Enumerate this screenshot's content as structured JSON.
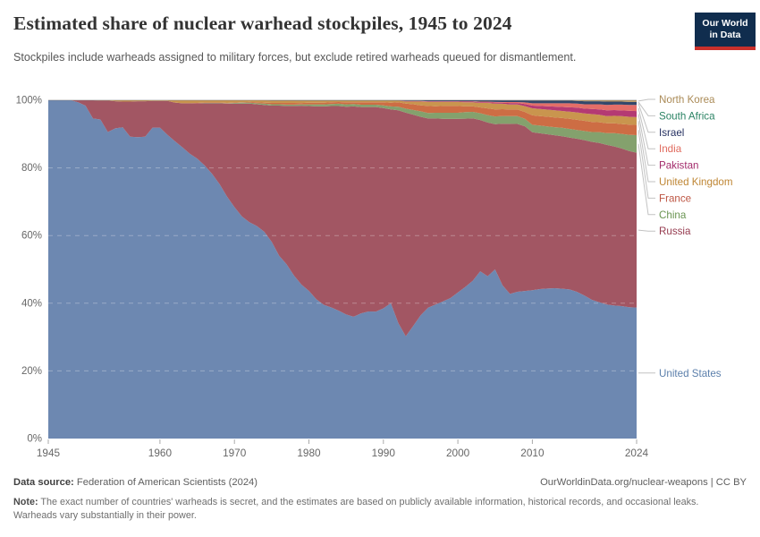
{
  "header": {
    "title": "Estimated share of nuclear warhead stockpiles, 1945 to 2024",
    "subtitle": "Stockpiles include warheads assigned to military forces, but exclude retired warheads queued for dismantlement.",
    "logo": {
      "line1": "Our World",
      "line2": "in Data"
    }
  },
  "footer": {
    "source_label": "Data source:",
    "source_text": " Federation of American Scientists (2024)",
    "link_text": "OurWorldinData.org/nuclear-weapons | CC BY",
    "note_label": "Note:",
    "note_text": " The exact number of countries' warheads is secret, and the estimates are based on publicly available information, historical records, and occasional leaks. Warheads vary substantially in their power."
  },
  "chart_data": {
    "type": "area",
    "stacked": true,
    "normalized_to_100": true,
    "title": "Estimated share of nuclear warhead stockpiles, 1945 to 2024",
    "xlabel": "",
    "ylabel": "",
    "ylim": [
      0,
      100
    ],
    "grid": "dashed",
    "legend_position": "right",
    "x_start": 1945,
    "x_end": 2024,
    "xticks": [
      1945,
      1960,
      1970,
      1980,
      1990,
      2000,
      2010,
      2024
    ],
    "yticks": [
      0,
      20,
      40,
      60,
      80,
      100
    ],
    "ytick_labels": [
      "0%",
      "20%",
      "40%",
      "60%",
      "80%",
      "100%"
    ],
    "legend_order_top_to_bottom": [
      "North Korea",
      "South Africa",
      "Israel",
      "India",
      "Pakistan",
      "United Kingdom",
      "France",
      "China",
      "Russia",
      "United States"
    ],
    "axis_color": "#676767",
    "grid_color_over_areas": "rgba(255,255,255,0.30)",
    "connector_color": "#c2c2c2",
    "top_border_color": "#777777",
    "series": [
      {
        "name": "United States",
        "area_color": "#6d88b1",
        "label_color": "#5b7fab",
        "values": [
          100,
          100,
          100,
          100,
          99.4,
          98.4,
          94.6,
          94.3,
          90.6,
          91.7,
          92,
          89.3,
          89.1,
          89.2,
          91.9,
          91.9,
          89.8,
          87.9,
          86.2,
          84.2,
          82.8,
          80.8,
          78.3,
          75.2,
          71.6,
          68.4,
          65.7,
          64,
          62.9,
          61.2,
          58.2,
          54.1,
          51.7,
          48.3,
          45.6,
          43.7,
          41.3,
          39.6,
          38.8,
          37.8,
          36.7,
          36,
          37.1,
          37.6,
          37.5,
          38.5,
          40.1,
          34.2,
          30.4,
          33.5,
          36.5,
          38.8,
          39.6,
          40.5,
          41.4,
          43.1,
          44.5,
          46.2,
          49.1,
          48,
          50.2,
          45,
          42.3,
          42.8,
          43.2,
          44,
          44.4,
          44.6,
          44.7,
          44.5,
          44.3,
          43.5,
          42.3,
          41,
          40.2,
          39.6,
          39.2,
          39,
          38.8,
          38.7
        ]
      },
      {
        "name": "Russia",
        "area_color": "#a25663",
        "label_color": "#963c50",
        "values": [
          0,
          0,
          0,
          0,
          0.6,
          1.6,
          5.4,
          5.6,
          9.3,
          8,
          7.6,
          10.4,
          10.6,
          10.5,
          7.9,
          7.9,
          10,
          11.4,
          13,
          14.9,
          16.4,
          18.4,
          20.9,
          23.9,
          27.5,
          30.6,
          33.4,
          35.1,
          36,
          37.5,
          40.3,
          44.4,
          46.9,
          50.3,
          53,
          54.7,
          57.2,
          58.8,
          59.6,
          60.5,
          61.5,
          62.2,
          61.1,
          60.5,
          60.4,
          59.2,
          57.4,
          63,
          66.5,
          62.9,
          58.8,
          56.1,
          55,
          53.9,
          52.8,
          51.2,
          49.4,
          47.5,
          44.4,
          45.4,
          43.1,
          47.5,
          49.7,
          48.9,
          48.2,
          46.9,
          46.3,
          45.9,
          45.5,
          45.3,
          45.1,
          45.4,
          46,
          46.7,
          47,
          47.2,
          46.9,
          46.4,
          46.1,
          45.7
        ]
      },
      {
        "name": "China",
        "area_color": "#84a16d",
        "label_color": "#6a9552",
        "values": [
          0,
          0,
          0,
          0,
          0,
          0,
          0,
          0,
          0,
          0,
          0,
          0,
          0,
          0,
          0,
          0,
          0,
          0,
          0,
          0,
          0,
          0.1,
          0.1,
          0.1,
          0.1,
          0.2,
          0.3,
          0.3,
          0.3,
          0.4,
          0.4,
          0.4,
          0.4,
          0.4,
          0.4,
          0.5,
          0.6,
          0.6,
          0.6,
          0.7,
          0.7,
          0.7,
          0.7,
          0.7,
          0.7,
          0.8,
          0.9,
          1.1,
          1.2,
          1.4,
          1.6,
          1.6,
          1.7,
          1.8,
          1.8,
          1.8,
          1.9,
          1.9,
          2,
          2.2,
          2.3,
          2.3,
          2.3,
          2.3,
          2.2,
          2.2,
          2.3,
          2.3,
          2.4,
          2.5,
          2.6,
          2.6,
          2.7,
          2.9,
          3.2,
          3.5,
          3.9,
          4.3,
          4.8,
          5.2
        ]
      },
      {
        "name": "France",
        "area_color": "#cd6d44",
        "label_color": "#bd5543",
        "values": [
          0,
          0,
          0,
          0,
          0,
          0,
          0,
          0,
          0,
          0,
          0,
          0,
          0,
          0,
          0,
          0,
          0,
          0,
          0,
          0,
          0.1,
          0.1,
          0.1,
          0.1,
          0.1,
          0.1,
          0.1,
          0.2,
          0.3,
          0.3,
          0.4,
          0.4,
          0.5,
          0.5,
          0.4,
          0.5,
          0.5,
          0.5,
          0.5,
          0.5,
          0.6,
          0.5,
          0.7,
          0.7,
          0.7,
          0.9,
          1.1,
          1.3,
          1.5,
          1.7,
          1.8,
          2.1,
          1.9,
          2,
          2,
          2,
          1.7,
          1.6,
          1.7,
          2,
          2.1,
          2,
          1.9,
          1.9,
          2,
          2.8,
          2.8,
          2.9,
          2.9,
          2.9,
          3,
          3,
          3,
          3,
          2.9,
          2.9,
          2.9,
          2.9,
          3,
          3
        ]
      },
      {
        "name": "United Kingdom",
        "area_color": "#c9954e",
        "label_color": "#bf8634",
        "values": [
          0,
          0,
          0,
          0,
          0,
          0,
          0,
          0.1,
          0.1,
          0.3,
          0.4,
          0.4,
          0.3,
          0.3,
          0.2,
          0.2,
          0.2,
          0.7,
          0.9,
          0.9,
          0.8,
          0.7,
          0.7,
          0.7,
          0.8,
          0.7,
          0.6,
          0.5,
          0.6,
          0.7,
          0.7,
          0.7,
          0.7,
          0.7,
          0.7,
          0.6,
          0.6,
          0.6,
          0.5,
          0.4,
          0.5,
          0.5,
          0.5,
          0.5,
          0.5,
          0.5,
          0.6,
          0.5,
          0.6,
          0.8,
          1.1,
          1.2,
          1.3,
          1.2,
          1.2,
          1.2,
          1.2,
          1.2,
          1.3,
          1.6,
          1.7,
          1.6,
          1.5,
          1.5,
          1.7,
          2.1,
          2.1,
          2.1,
          2.1,
          2.1,
          2.1,
          2.2,
          2.2,
          2.3,
          2.2,
          2.1,
          2.2,
          2.3,
          2.3,
          2.3
        ]
      },
      {
        "name": "Pakistan",
        "area_color": "#b43a73",
        "label_color": "#a32b6b",
        "values": [
          0,
          0,
          0,
          0,
          0,
          0,
          0,
          0,
          0,
          0,
          0,
          0,
          0,
          0,
          0,
          0,
          0,
          0,
          0,
          0,
          0,
          0,
          0,
          0,
          0,
          0,
          0,
          0,
          0,
          0,
          0,
          0,
          0,
          0,
          0,
          0,
          0,
          0,
          0,
          0,
          0,
          0,
          0,
          0,
          0,
          0,
          0,
          0,
          0.1,
          0.1,
          0.1,
          0.1,
          0.1,
          0.1,
          0.1,
          0.1,
          0.2,
          0.2,
          0.2,
          0.2,
          0.3,
          0.3,
          0.4,
          0.4,
          0.6,
          0.8,
          0.9,
          1,
          1.1,
          1.2,
          1.3,
          1.4,
          1.4,
          1.5,
          1.6,
          1.7,
          1.7,
          1.7,
          1.8,
          1.8
        ]
      },
      {
        "name": "India",
        "area_color": "#e46e68",
        "label_color": "#e0695c",
        "values": [
          0,
          0,
          0,
          0,
          0,
          0,
          0,
          0,
          0,
          0,
          0,
          0,
          0,
          0,
          0,
          0,
          0,
          0,
          0,
          0,
          0,
          0,
          0,
          0,
          0,
          0,
          0,
          0,
          0,
          0,
          0,
          0,
          0,
          0,
          0,
          0,
          0,
          0,
          0,
          0,
          0,
          0,
          0,
          0,
          0,
          0,
          0,
          0,
          0.1,
          0.1,
          0.1,
          0.1,
          0.1,
          0.1,
          0.1,
          0.1,
          0.1,
          0.1,
          0.2,
          0.2,
          0.2,
          0.2,
          0.3,
          0.3,
          0.5,
          0.7,
          0.8,
          0.9,
          1,
          1.1,
          1.2,
          1.2,
          1.3,
          1.4,
          1.5,
          1.6,
          1.6,
          1.7,
          1.7,
          1.8
        ]
      },
      {
        "name": "Israel",
        "area_color": "#33486b",
        "label_color": "#253061",
        "values": [
          0,
          0,
          0,
          0,
          0,
          0,
          0,
          0,
          0,
          0,
          0,
          0,
          0,
          0,
          0,
          0,
          0,
          0,
          0,
          0,
          0,
          0,
          0,
          0,
          0,
          0,
          0,
          0,
          0,
          0,
          0.1,
          0.1,
          0.1,
          0.1,
          0.1,
          0.1,
          0.1,
          0.1,
          0.1,
          0.1,
          0.1,
          0.1,
          0.1,
          0.1,
          0.1,
          0.1,
          0.1,
          0.1,
          0.2,
          0.2,
          0.2,
          0.3,
          0.3,
          0.3,
          0.3,
          0.3,
          0.3,
          0.3,
          0.4,
          0.4,
          0.5,
          0.5,
          0.5,
          0.5,
          0.6,
          0.8,
          0.8,
          0.8,
          0.8,
          0.8,
          0.8,
          0.8,
          0.9,
          0.9,
          0.9,
          1,
          0.9,
          0.9,
          0.9,
          0.9
        ]
      },
      {
        "name": "South Africa",
        "area_color": "#53a68a",
        "label_color": "#2c8465",
        "values": [
          0,
          0,
          0,
          0,
          0,
          0,
          0,
          0,
          0,
          0,
          0,
          0,
          0,
          0,
          0,
          0,
          0,
          0,
          0,
          0,
          0,
          0,
          0,
          0,
          0,
          0,
          0,
          0,
          0,
          0,
          0,
          0,
          0,
          0,
          0.02,
          0.02,
          0.02,
          0.02,
          0.02,
          0.02,
          0.02,
          0.02,
          0.02,
          0.02,
          0.02,
          0.02,
          0.02,
          0,
          0,
          0,
          0,
          0,
          0,
          0,
          0,
          0,
          0,
          0,
          0,
          0,
          0,
          0,
          0,
          0,
          0,
          0,
          0,
          0,
          0,
          0,
          0,
          0,
          0,
          0,
          0,
          0,
          0,
          0,
          0,
          0
        ]
      },
      {
        "name": "North Korea",
        "area_color": "#c09a62",
        "label_color": "#aa8a56",
        "values": [
          0,
          0,
          0,
          0,
          0,
          0,
          0,
          0,
          0,
          0,
          0,
          0,
          0,
          0,
          0,
          0,
          0,
          0,
          0,
          0,
          0,
          0,
          0,
          0,
          0,
          0,
          0,
          0,
          0,
          0,
          0,
          0,
          0,
          0,
          0,
          0,
          0,
          0,
          0,
          0,
          0,
          0,
          0,
          0,
          0,
          0,
          0,
          0,
          0,
          0,
          0,
          0,
          0,
          0,
          0,
          0,
          0,
          0,
          0,
          0,
          0,
          0.02,
          0.02,
          0.02,
          0.03,
          0.1,
          0.1,
          0.1,
          0.1,
          0.1,
          0.1,
          0.2,
          0.3,
          0.3,
          0.3,
          0.4,
          0.4,
          0.4,
          0.5,
          0.5
        ]
      }
    ]
  }
}
